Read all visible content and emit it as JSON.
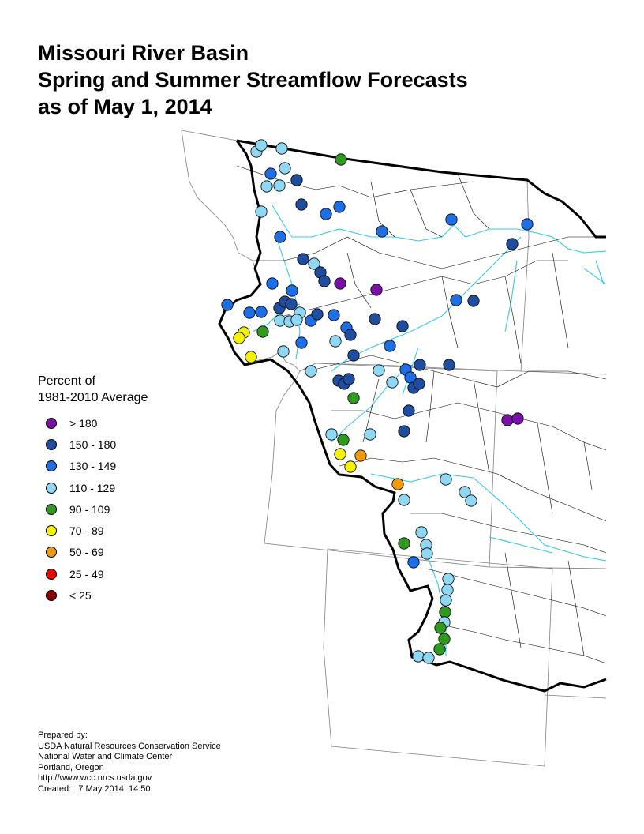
{
  "title": {
    "line1": "Missouri River Basin",
    "line2": "Spring and Summer Streamflow Forecasts",
    "line3": "as of May 1, 2014"
  },
  "legend": {
    "title_line1": "Percent of",
    "title_line2": "1981-2010 Average",
    "classes": [
      {
        "label": "> 180",
        "color": "#7b10a8"
      },
      {
        "label": "150 - 180",
        "color": "#1f4ea0"
      },
      {
        "label": "130 - 149",
        "color": "#1e6fe6"
      },
      {
        "label": "110 - 129",
        "color": "#8fd8f4"
      },
      {
        "label": "90 - 109",
        "color": "#2f9a1e"
      },
      {
        "label": "70 - 89",
        "color": "#f5f200"
      },
      {
        "label": "50 - 69",
        "color": "#f29b0a"
      },
      {
        "label": "25 - 49",
        "color": "#f20000"
      },
      {
        "label": "< 25",
        "color": "#8b0000"
      }
    ]
  },
  "credits": {
    "line1": "Prepared by:",
    "line2": "USDA Natural Resources Conservation Service",
    "line3": "National Water and Climate Center",
    "line4": "Portland, Oregon",
    "line5": "http://www.wcc.nrcs.usda.gov",
    "line6": "Created:   7 May 2014  14:50"
  },
  "map_colors": {
    "river": "#33c8f0",
    "state_line": "#808080",
    "basin_line": "#000000"
  }
}
